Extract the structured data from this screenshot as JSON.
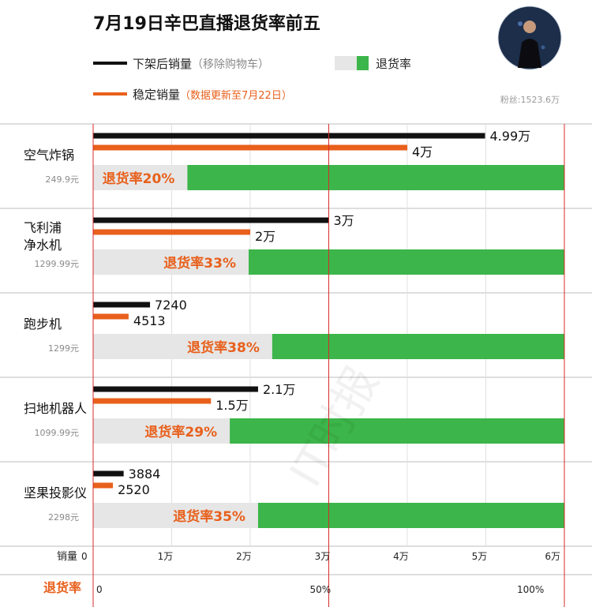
{
  "title": "7月19日辛巴直播退货率前五",
  "legend": {
    "sold_label": "下架后销量",
    "sold_note": "（移除购物车）",
    "stable_label": "稳定销量",
    "stable_note": "（数据更新至7月22日）",
    "return_label": "退货率"
  },
  "followers": "粉丝:1523.6万",
  "watermark": "IT时报",
  "axis": {
    "sales_name": "销量",
    "sales_ticks": [
      "0",
      "1万",
      "2万",
      "3万",
      "4万",
      "5万",
      "6万"
    ],
    "return_name": "退货率",
    "return_ticks": [
      "0",
      "50%",
      "100%"
    ]
  },
  "colors": {
    "sold": "#111111",
    "stable": "#e8601c",
    "return_bar": "#3cb54a",
    "remain_bar": "#e6e6e6",
    "rate_text": "#e8601c",
    "ref_line": "#d92b2b"
  },
  "chart_data": {
    "type": "bar",
    "title": "7月19日辛巴直播退货率前五",
    "categories": [
      "空气炸锅",
      "飞利浦净水机",
      "跑步机",
      "扫地机器人",
      "坚果投影仪"
    ],
    "category_lines": [
      [
        "空气炸锅"
      ],
      [
        "飞利浦",
        "净水机"
      ],
      [
        "跑步机"
      ],
      [
        "扫地机器人"
      ],
      [
        "坚果投影仪"
      ]
    ],
    "prices": [
      "249.9元",
      "1299.99元",
      "1299元",
      "1099.99元",
      "2298元"
    ],
    "series": [
      {
        "name": "下架后销量",
        "values": [
          49900,
          30000,
          7240,
          21000,
          3884
        ],
        "labels": [
          "4.99万",
          "3万",
          "7240",
          "2.1万",
          "3884"
        ]
      },
      {
        "name": "稳定销量",
        "values": [
          40000,
          20000,
          4513,
          15000,
          2520
        ],
        "labels": [
          "4万",
          "2万",
          "4513",
          "1.5万",
          "2520"
        ]
      },
      {
        "name": "退货率",
        "values": [
          20,
          33,
          38,
          29,
          35
        ],
        "labels": [
          "退货率20%",
          "退货率33%",
          "退货率38%",
          "退货率29%",
          "退货率35%"
        ]
      }
    ],
    "xlim": [
      0,
      60000
    ],
    "return_lim": [
      0,
      100
    ],
    "grid": true,
    "legend_position": "top-left"
  }
}
